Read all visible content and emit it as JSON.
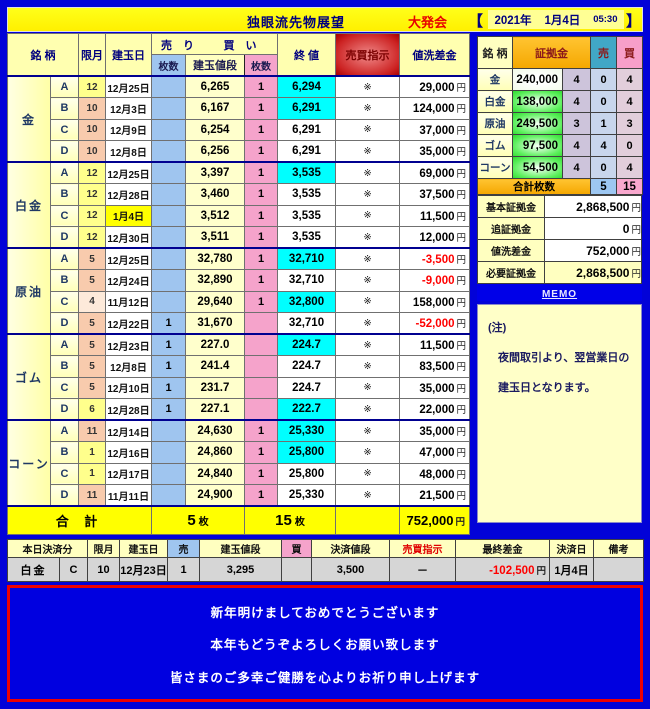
{
  "title_bar": {
    "title": "独眼流先物展望",
    "event": "大発会",
    "bracket_open": "【",
    "year": "2021年",
    "date": "1月4日",
    "time": "05:30",
    "bracket_close": "】"
  },
  "units": {
    "yen": "円",
    "mai": "枚"
  },
  "marks": {
    "instruction": "※",
    "dash": "－"
  },
  "colors": {
    "frame_blue": "#0202D8",
    "title_yellow": "#FFFF00",
    "cyan_highlight": "#00FFFF",
    "negative_red": "#FF0000",
    "sell_blue": "#9FC5EF",
    "buy_pink": "#F5A3CB",
    "margin_orange": "#FFB400",
    "margin_green": "#44EE44"
  },
  "main_table": {
    "headers": {
      "name": "銘 柄",
      "month": "限月",
      "open_date": "建玉日",
      "sell": "売 り",
      "buy": "買 い",
      "qty": "枚数",
      "price": "建玉値段",
      "close": "終 値",
      "instruction": "売買指示",
      "diff": "値洗差金"
    },
    "groups": [
      {
        "name": "金",
        "rows": [
          {
            "label": "A",
            "month": "12",
            "month_tone": "yellow",
            "date": "12月25日",
            "date_highlight": false,
            "sell_qty": "",
            "price": "6,265",
            "buy_qty": "1",
            "close": "6,294",
            "close_highlight": true,
            "diff": "29,000",
            "diff_negative": false
          },
          {
            "label": "B",
            "month": "10",
            "month_tone": "peach",
            "date": "12月3日",
            "date_highlight": false,
            "sell_qty": "",
            "price": "6,167",
            "buy_qty": "1",
            "close": "6,291",
            "close_highlight": true,
            "diff": "124,000",
            "diff_negative": false
          },
          {
            "label": "C",
            "month": "10",
            "month_tone": "peach",
            "date": "12月9日",
            "date_highlight": false,
            "sell_qty": "",
            "price": "6,254",
            "buy_qty": "1",
            "close": "6,291",
            "close_highlight": false,
            "diff": "37,000",
            "diff_negative": false
          },
          {
            "label": "D",
            "month": "10",
            "month_tone": "peach",
            "date": "12月8日",
            "date_highlight": false,
            "sell_qty": "",
            "price": "6,256",
            "buy_qty": "1",
            "close": "6,291",
            "close_highlight": false,
            "diff": "35,000",
            "diff_negative": false
          }
        ]
      },
      {
        "name": "白金",
        "rows": [
          {
            "label": "A",
            "month": "12",
            "month_tone": "yellow",
            "date": "12月25日",
            "date_highlight": false,
            "sell_qty": "",
            "price": "3,397",
            "buy_qty": "1",
            "close": "3,535",
            "close_highlight": true,
            "diff": "69,000",
            "diff_negative": false
          },
          {
            "label": "B",
            "month": "12",
            "month_tone": "yellow",
            "date": "12月28日",
            "date_highlight": false,
            "sell_qty": "",
            "price": "3,460",
            "buy_qty": "1",
            "close": "3,535",
            "close_highlight": false,
            "diff": "37,500",
            "diff_negative": false
          },
          {
            "label": "C",
            "month": "12",
            "month_tone": "yellow",
            "date": "1月4日",
            "date_highlight": true,
            "sell_qty": "",
            "price": "3,512",
            "buy_qty": "1",
            "close": "3,535",
            "close_highlight": false,
            "diff": "11,500",
            "diff_negative": false
          },
          {
            "label": "D",
            "month": "12",
            "month_tone": "yellow",
            "date": "12月30日",
            "date_highlight": false,
            "sell_qty": "",
            "price": "3,511",
            "buy_qty": "1",
            "close": "3,535",
            "close_highlight": false,
            "diff": "12,000",
            "diff_negative": false
          }
        ]
      },
      {
        "name": "原油",
        "rows": [
          {
            "label": "A",
            "month": "5",
            "month_tone": "peach",
            "date": "12月25日",
            "date_highlight": false,
            "sell_qty": "",
            "price": "32,780",
            "buy_qty": "1",
            "close": "32,710",
            "close_highlight": true,
            "diff": "-3,500",
            "diff_negative": true
          },
          {
            "label": "B",
            "month": "5",
            "month_tone": "peach",
            "date": "12月24日",
            "date_highlight": false,
            "sell_qty": "",
            "price": "32,890",
            "buy_qty": "1",
            "close": "32,710",
            "close_highlight": false,
            "diff": "-9,000",
            "diff_negative": true
          },
          {
            "label": "C",
            "month": "4",
            "month_tone": "pale",
            "date": "11月12日",
            "date_highlight": false,
            "sell_qty": "",
            "price": "29,640",
            "buy_qty": "1",
            "close": "32,800",
            "close_highlight": true,
            "diff": "158,000",
            "diff_negative": false
          },
          {
            "label": "D",
            "month": "5",
            "month_tone": "peach",
            "date": "12月22日",
            "date_highlight": false,
            "sell_qty": "1",
            "price": "31,670",
            "buy_qty": "",
            "close": "32,710",
            "close_highlight": false,
            "diff": "-52,000",
            "diff_negative": true
          }
        ]
      },
      {
        "name": "ゴム",
        "rows": [
          {
            "label": "A",
            "month": "5",
            "month_tone": "peach",
            "date": "12月23日",
            "date_highlight": false,
            "sell_qty": "1",
            "price": "227.0",
            "buy_qty": "",
            "close": "224.7",
            "close_highlight": true,
            "diff": "11,500",
            "diff_negative": false
          },
          {
            "label": "B",
            "month": "5",
            "month_tone": "peach",
            "date": "12月8日",
            "date_highlight": false,
            "sell_qty": "1",
            "price": "241.4",
            "buy_qty": "",
            "close": "224.7",
            "close_highlight": false,
            "diff": "83,500",
            "diff_negative": false
          },
          {
            "label": "C",
            "month": "5",
            "month_tone": "peach",
            "date": "12月10日",
            "date_highlight": false,
            "sell_qty": "1",
            "price": "231.7",
            "buy_qty": "",
            "close": "224.7",
            "close_highlight": false,
            "diff": "35,000",
            "diff_negative": false
          },
          {
            "label": "D",
            "month": "6",
            "month_tone": "yellow",
            "date": "12月28日",
            "date_highlight": false,
            "sell_qty": "1",
            "price": "227.1",
            "buy_qty": "",
            "close": "222.7",
            "close_highlight": true,
            "diff": "22,000",
            "diff_negative": false
          }
        ]
      },
      {
        "name": "コーン",
        "rows": [
          {
            "label": "A",
            "month": "11",
            "month_tone": "peach",
            "date": "12月14日",
            "date_highlight": false,
            "sell_qty": "",
            "price": "24,630",
            "buy_qty": "1",
            "close": "25,330",
            "close_highlight": true,
            "diff": "35,000",
            "diff_negative": false
          },
          {
            "label": "B",
            "month": "1",
            "month_tone": "yellow",
            "date": "12月16日",
            "date_highlight": false,
            "sell_qty": "",
            "price": "24,860",
            "buy_qty": "1",
            "close": "25,800",
            "close_highlight": true,
            "diff": "47,000",
            "diff_negative": false
          },
          {
            "label": "C",
            "month": "1",
            "month_tone": "yellow",
            "date": "12月17日",
            "date_highlight": false,
            "sell_qty": "",
            "price": "24,840",
            "buy_qty": "1",
            "close": "25,800",
            "close_highlight": false,
            "diff": "48,000",
            "diff_negative": false
          },
          {
            "label": "D",
            "month": "11",
            "month_tone": "peach",
            "date": "11月11日",
            "date_highlight": false,
            "sell_qty": "",
            "price": "24,900",
            "buy_qty": "1",
            "close": "25,330",
            "close_highlight": false,
            "diff": "21,500",
            "diff_negative": false
          }
        ]
      }
    ],
    "total": {
      "label": "合 計",
      "sell_total": "5",
      "buy_total": "15",
      "amount": "752,000"
    }
  },
  "margin_panel": {
    "headers": {
      "name": "銘 柄",
      "margin": "証拠金",
      "sell": "売",
      "buy": "買"
    },
    "rows": [
      {
        "name": "金",
        "amount": "240,000",
        "tone": "pale",
        "count": "4",
        "sell": "0",
        "buy": "4"
      },
      {
        "name": "白金",
        "amount": "138,000",
        "tone": "green",
        "count": "4",
        "sell": "0",
        "buy": "4"
      },
      {
        "name": "原油",
        "amount": "249,500",
        "tone": "green",
        "count": "3",
        "sell": "1",
        "buy": "3"
      },
      {
        "name": "ゴム",
        "amount": "97,500",
        "tone": "green",
        "count": "4",
        "sell": "4",
        "buy": "0"
      },
      {
        "name": "コーン",
        "amount": "54,500",
        "tone": "green",
        "count": "4",
        "sell": "0",
        "buy": "4"
      }
    ],
    "total": {
      "label": "合計枚数",
      "sell": "5",
      "buy": "15"
    },
    "summary": [
      {
        "label": "基本証拠金",
        "value": "2,868,500",
        "highlight": false
      },
      {
        "label": "追証拠金",
        "value": "0",
        "highlight": false
      },
      {
        "label": "値洗差金",
        "value": "752,000",
        "highlight": false
      },
      {
        "label": "必要証拠金",
        "value": "2,868,500",
        "highlight": true
      }
    ],
    "memo_label": "MEMO",
    "note_lines": [
      "(注)",
      "夜間取引より、翌営業日の",
      "建玉日となります。"
    ]
  },
  "settlement": {
    "headers": [
      "本日決済分",
      "限月",
      "建玉日",
      "売",
      "建玉値段",
      "買",
      "決済値段",
      "売買指示",
      "最終差金",
      "決済日",
      "備考"
    ],
    "row": {
      "name": "白金",
      "label": "C",
      "month": "10",
      "date": "12月23日",
      "sell": "1",
      "price": "3,295",
      "buy": "",
      "settle_price": "3,500",
      "instruction": "－",
      "final_amount": "-102,500",
      "settle_date": "1月4日",
      "remark": ""
    }
  },
  "banner": {
    "lines": [
      "新年明けましておめでとうございます",
      "本年もどうぞよろしくお願い致します",
      "皆さまのご多幸ご健勝を心よりお祈り申し上げます"
    ]
  }
}
